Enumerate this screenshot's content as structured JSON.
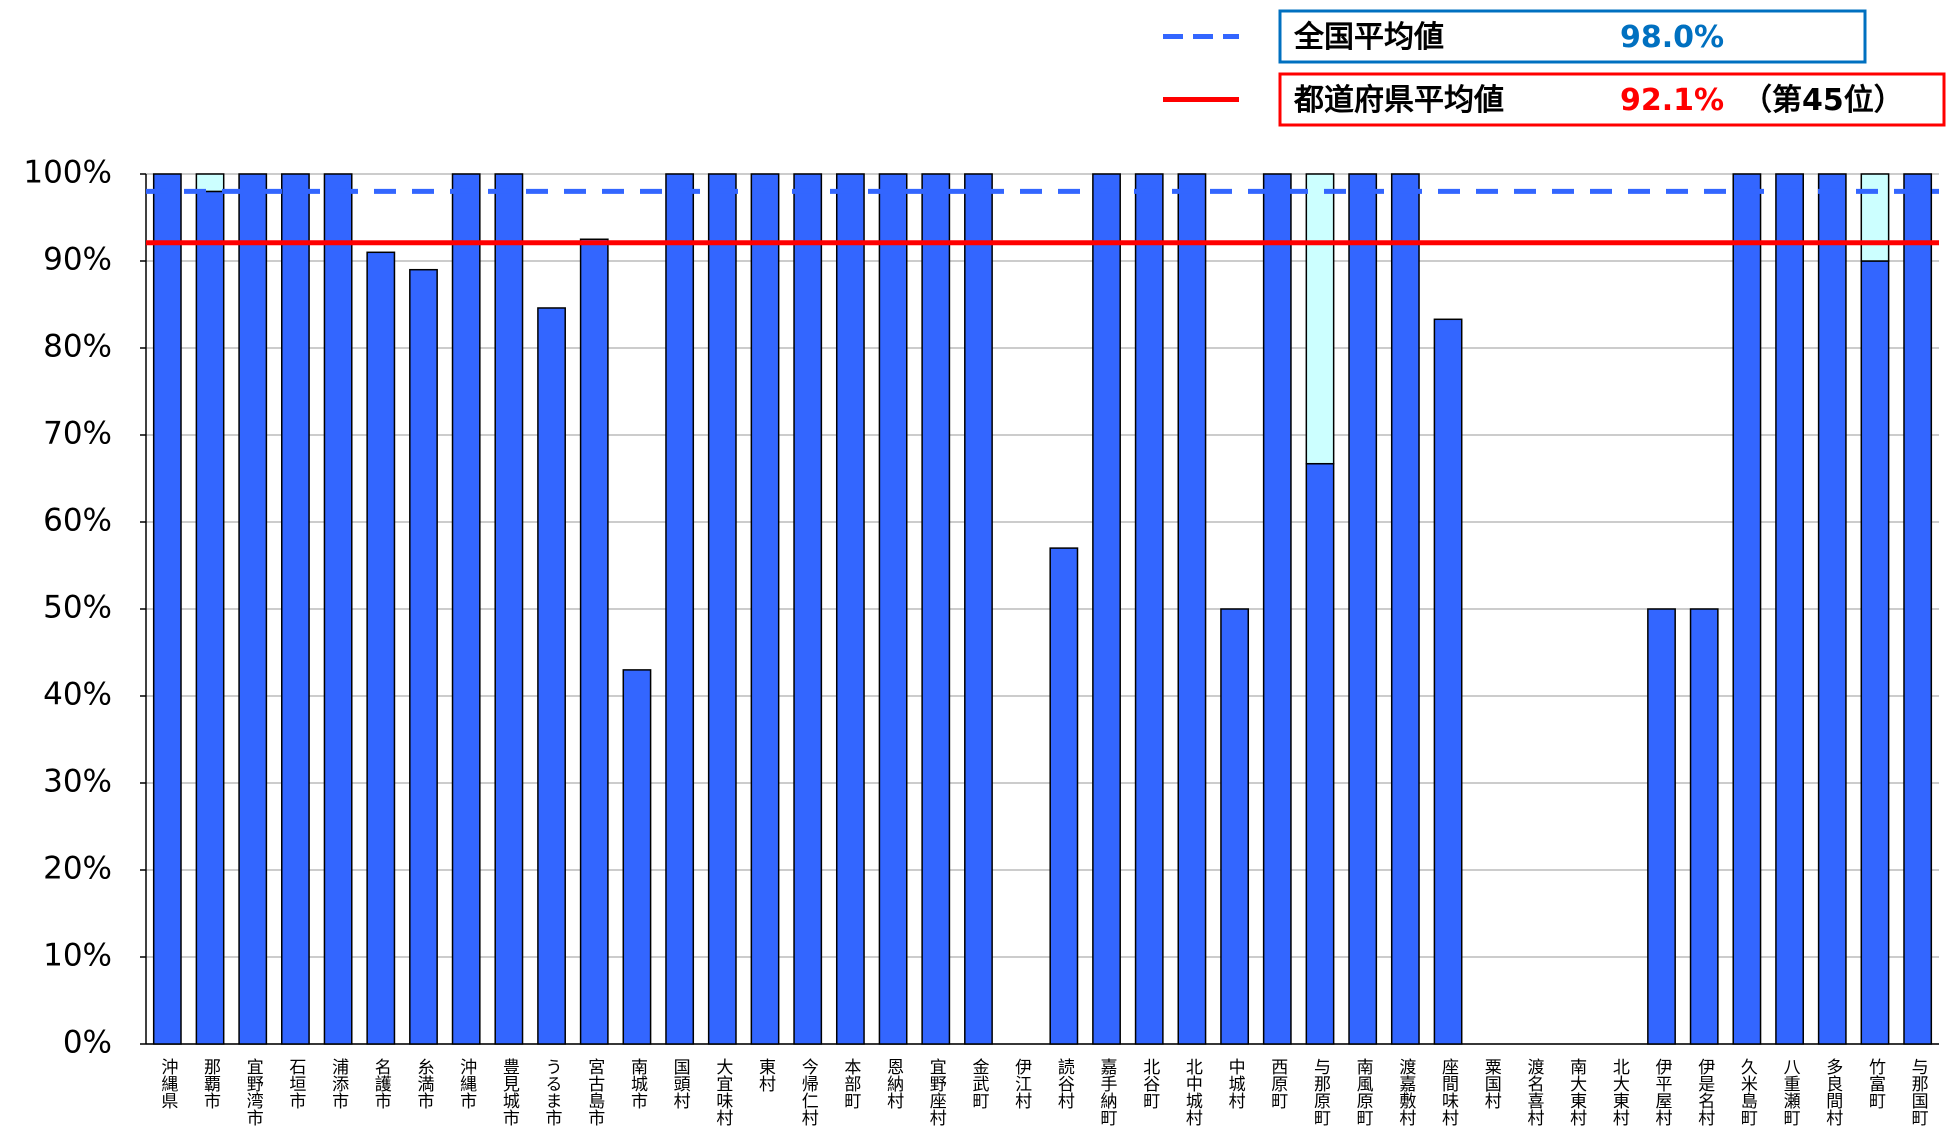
{
  "chart_data": {
    "type": "bar",
    "stacked": true,
    "categories": [
      "沖縄県",
      "那覇市",
      "宜野湾市",
      "石垣市",
      "浦添市",
      "名護市",
      "糸満市",
      "沖縄市",
      "豊見城市",
      "うるま市",
      "宮古島市",
      "南城市",
      "国頭村",
      "大宜味村",
      "東村",
      "今帰仁村",
      "本部町",
      "恩納村",
      "宜野座村",
      "金武町",
      "伊江村",
      "読谷村",
      "嘉手納町",
      "北谷町",
      "北中城村",
      "中城村",
      "西原町",
      "与那原町",
      "南風原町",
      "渡嘉敷村",
      "座間味村",
      "粟国村",
      "渡名喜村",
      "南大東村",
      "北大東村",
      "伊平屋村",
      "伊是名村",
      "久米島町",
      "八重瀬町",
      "多良間村",
      "竹富町",
      "与那国町"
    ],
    "series": [
      {
        "color": "#3366ff",
        "values": [
          100,
          98,
          100,
          100,
          100,
          91,
          89,
          100,
          100,
          84.6,
          92.5,
          43,
          100,
          100,
          100,
          100,
          100,
          100,
          100,
          100,
          0,
          57,
          100,
          100,
          100,
          50,
          100,
          66.7,
          100,
          100,
          83.3,
          0,
          0,
          0,
          0,
          50,
          50,
          100,
          100,
          100,
          90,
          100
        ]
      },
      {
        "color": "#ccffff",
        "values": [
          0,
          2,
          0,
          0,
          0,
          0,
          0,
          0,
          0,
          0,
          0,
          0,
          0,
          0,
          0,
          0,
          0,
          0,
          0,
          0,
          0,
          0,
          0,
          0,
          0,
          0,
          0,
          33.3,
          0,
          0,
          0,
          0,
          0,
          0,
          0,
          0,
          0,
          0,
          0,
          0,
          10,
          0
        ]
      }
    ],
    "ylim": [
      0,
      100
    ],
    "yticks": [
      {
        "value": 0,
        "label": "0%"
      },
      {
        "value": 10,
        "label": "10%"
      },
      {
        "value": 20,
        "label": "20%"
      },
      {
        "value": 30,
        "label": "30%"
      },
      {
        "value": 40,
        "label": "40%"
      },
      {
        "value": 50,
        "label": "50%"
      },
      {
        "value": 60,
        "label": "60%"
      },
      {
        "value": 70,
        "label": "70%"
      },
      {
        "value": 80,
        "label": "80%"
      },
      {
        "value": 90,
        "label": "90%"
      },
      {
        "value": 100,
        "label": "100%"
      }
    ],
    "grid": true,
    "reference_lines": [
      {
        "name": "全国平均値",
        "value": 98.0,
        "value_label": "98.0%",
        "color": "#3366ff",
        "style": "dashed",
        "box_color": "#0070c0",
        "label_color": "#0070c0"
      },
      {
        "name": "都道府県平均値",
        "value": 92.1,
        "value_label": "92.1%",
        "rank": "（第45位）",
        "color": "#ff0000",
        "style": "solid",
        "box_color": "#ff0000",
        "label_color": "#ff0000"
      }
    ]
  }
}
